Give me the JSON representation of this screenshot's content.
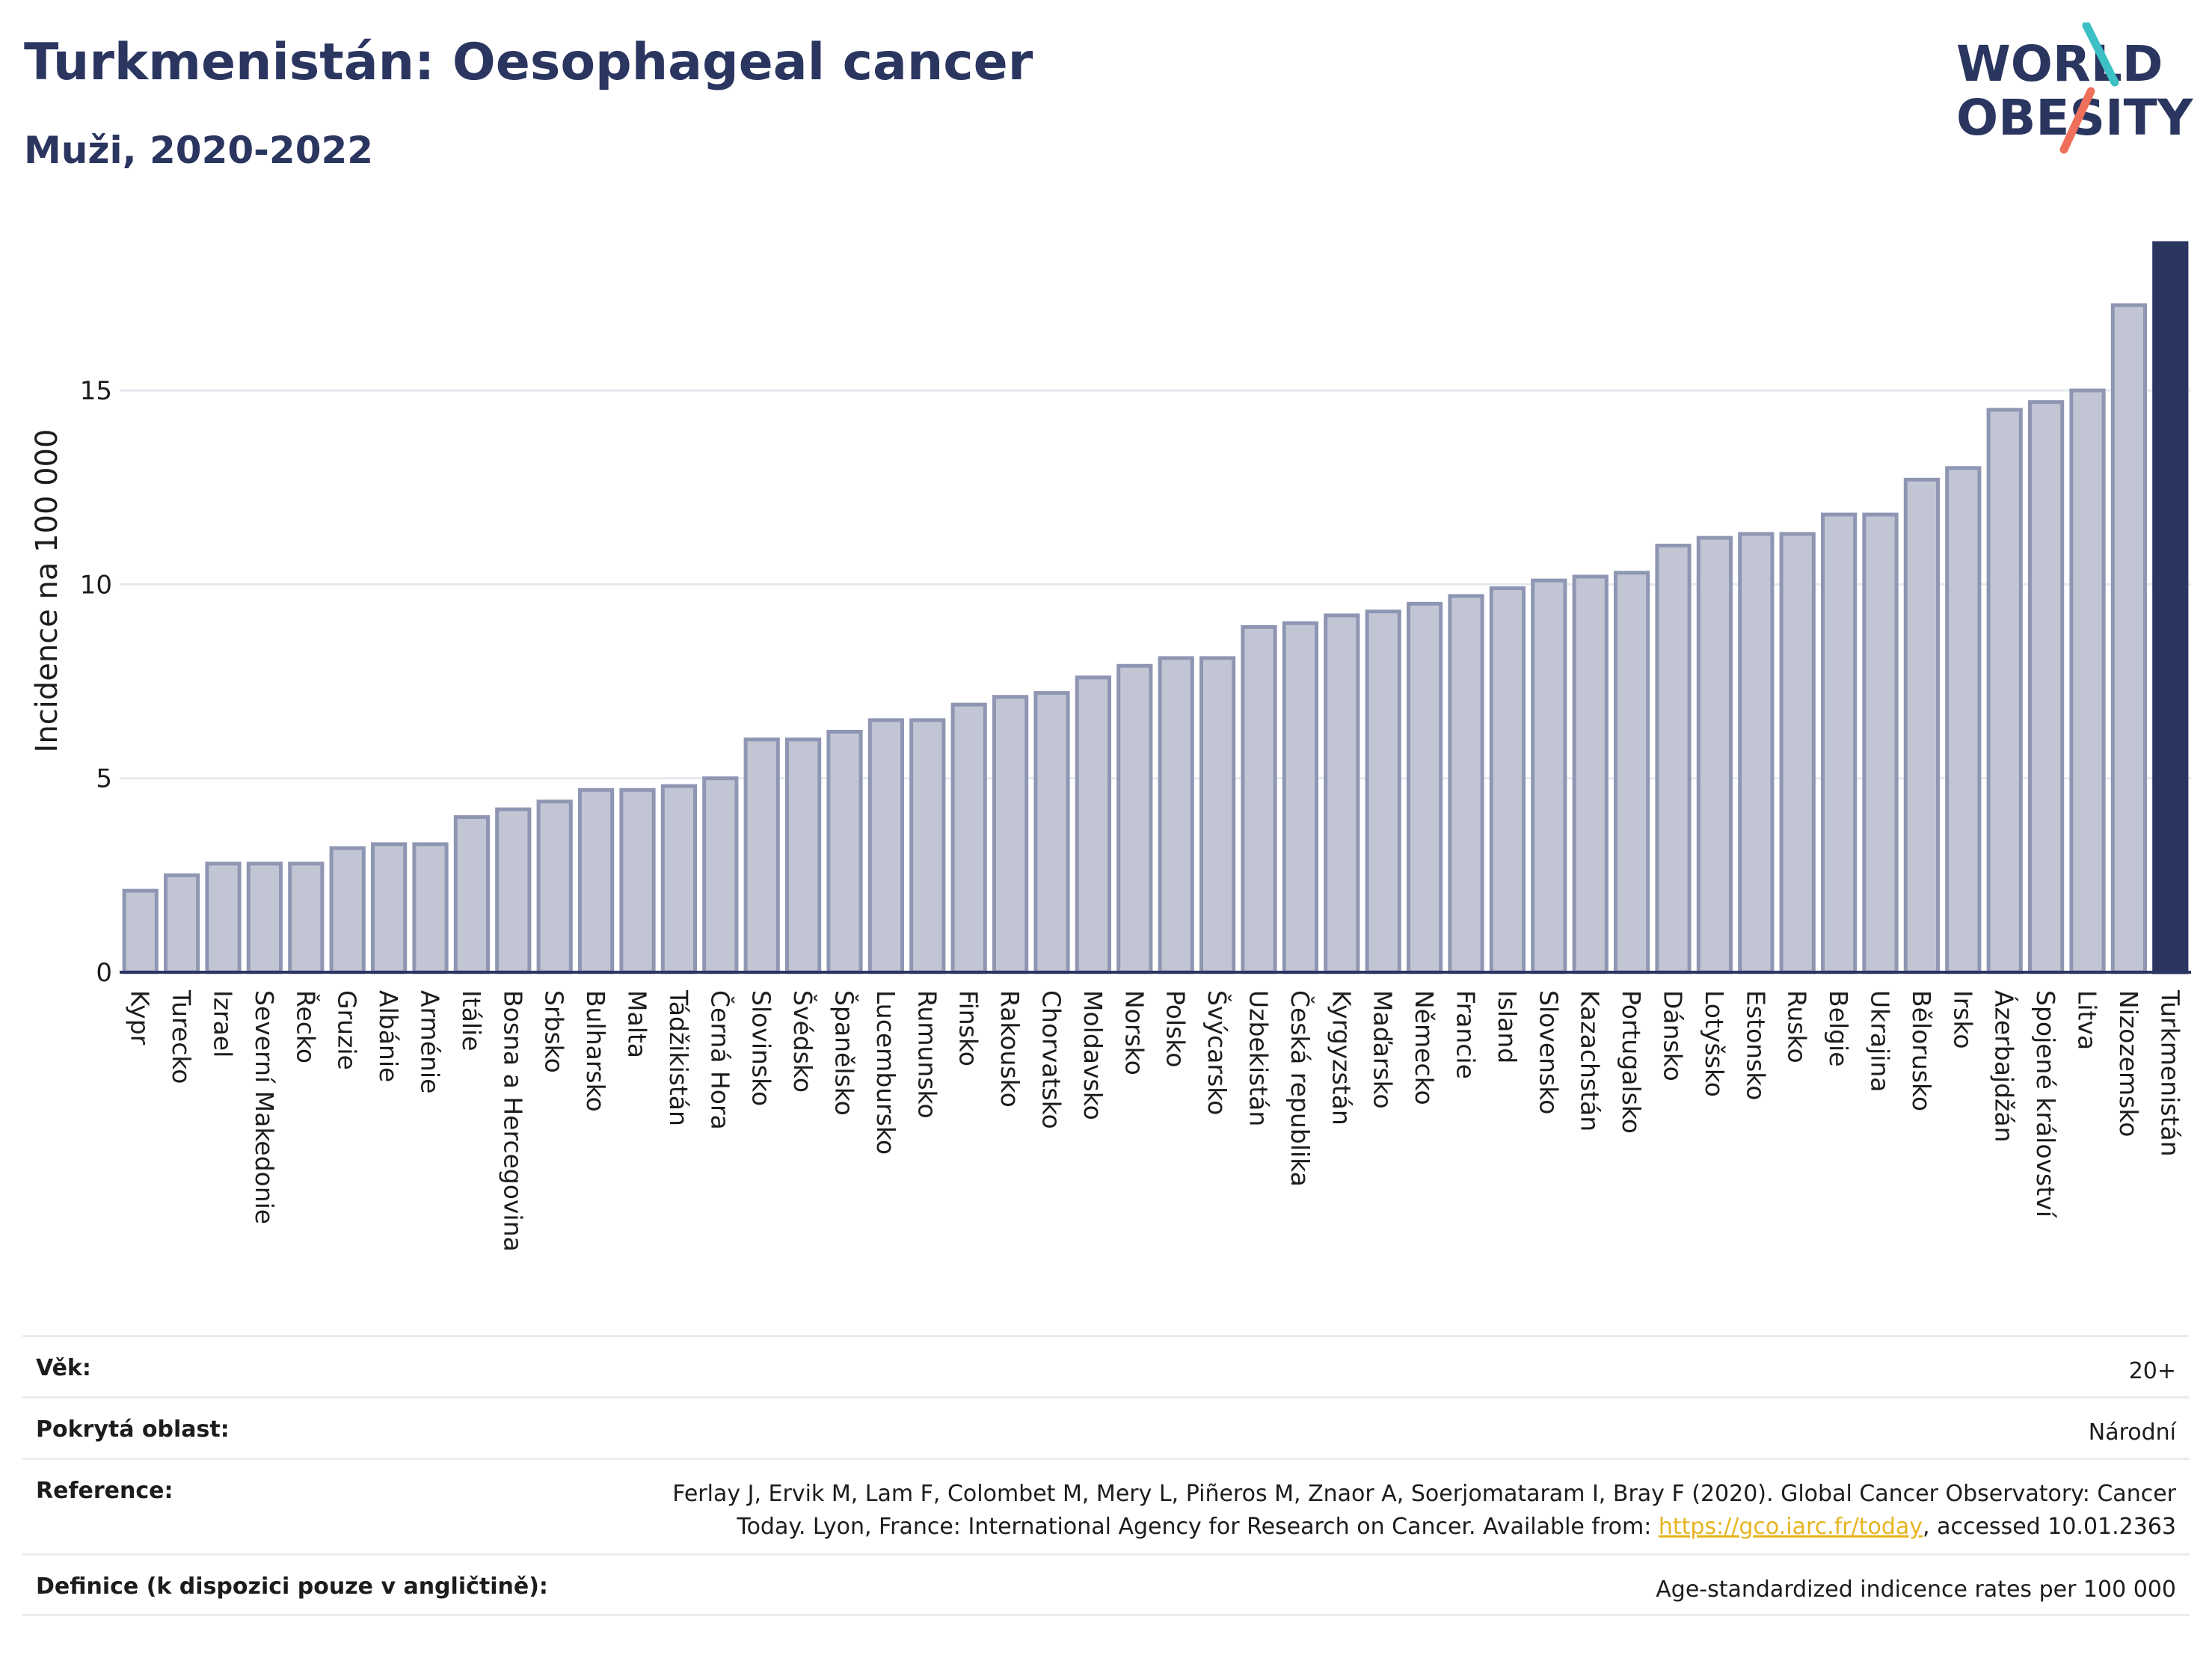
{
  "header": {
    "title": "Turkmenistán: Oesophageal cancer",
    "subtitle": "Muži, 2020-2022",
    "logo_line1": "WORLD",
    "logo_line2": "OBESITY"
  },
  "colors": {
    "bar_fill": "#c2c6d4",
    "bar_stroke": "#8f96b3",
    "highlight": "#2b3561",
    "text": "#2a3560",
    "grid": "#e6e9ef"
  },
  "chart_data": {
    "type": "bar",
    "title": "Turkmenistán: Oesophageal cancer",
    "subtitle": "Muži, 2020-2022",
    "xlabel": "",
    "ylabel": "Incidence na 100 000",
    "ylim": [
      0,
      19
    ],
    "yticks": [
      0,
      5,
      10,
      15
    ],
    "grid": true,
    "highlight_category": "Turkmenistán",
    "categories": [
      "Kypr",
      "Turecko",
      "Izrael",
      "Severní Makedonie",
      "Řecko",
      "Gruzie",
      "Albánie",
      "Arménie",
      "Itálie",
      "Bosna a Hercegovina",
      "Srbsko",
      "Bulharsko",
      "Malta",
      "Tádžikistán",
      "Černá Hora",
      "Slovinsko",
      "Švédsko",
      "Španělsko",
      "Lucembursko",
      "Rumunsko",
      "Finsko",
      "Rakousko",
      "Chorvatsko",
      "Moldavsko",
      "Norsko",
      "Polsko",
      "Švýcarsko",
      "Uzbekistán",
      "Česká republika",
      "Kyrgyzstán",
      "Maďarsko",
      "Německo",
      "Francie",
      "Island",
      "Slovensko",
      "Kazachstán",
      "Portugalsko",
      "Dánsko",
      "Lotyšsko",
      "Estonsko",
      "Rusko",
      "Belgie",
      "Ukrajina",
      "Bělorusko",
      "Irsko",
      "Ázerbajdžán",
      "Spojené království",
      "Litva",
      "Nizozemsko",
      "Turkmenistán"
    ],
    "values": [
      2.1,
      2.5,
      2.8,
      2.8,
      2.8,
      3.2,
      3.3,
      3.3,
      4.0,
      4.2,
      4.4,
      4.7,
      4.7,
      4.8,
      5.0,
      6.0,
      6.0,
      6.2,
      6.5,
      6.5,
      6.9,
      7.1,
      7.2,
      7.6,
      7.9,
      8.1,
      8.1,
      8.9,
      9.0,
      9.2,
      9.3,
      9.5,
      9.7,
      9.9,
      10.1,
      10.2,
      10.3,
      11.0,
      11.2,
      11.3,
      11.3,
      11.8,
      11.8,
      12.7,
      13.0,
      14.5,
      14.7,
      15.0,
      17.2,
      18.8
    ]
  },
  "info": {
    "age_label": "Věk:",
    "age_value": "20+",
    "coverage_label": "Pokrytá oblast:",
    "coverage_value": "Národní",
    "reference_label": "Reference:",
    "reference_line1": "Ferlay J, Ervik M, Lam F, Colombet M, Mery L, Piñeros M, Znaor A, Soerjomataram I, Bray F (2020). Global Cancer Observatory: Cancer",
    "reference_line2_pre": "Today. Lyon, France: International Agency for Research on Cancer. Available from: ",
    "reference_link": "https://gco.iarc.fr/today",
    "reference_line2_post": ", accessed 10.01.2363",
    "definition_label": "Definice (k dispozici pouze v angličtině):",
    "definition_value": "Age-standardized indicence rates per 100 000"
  }
}
